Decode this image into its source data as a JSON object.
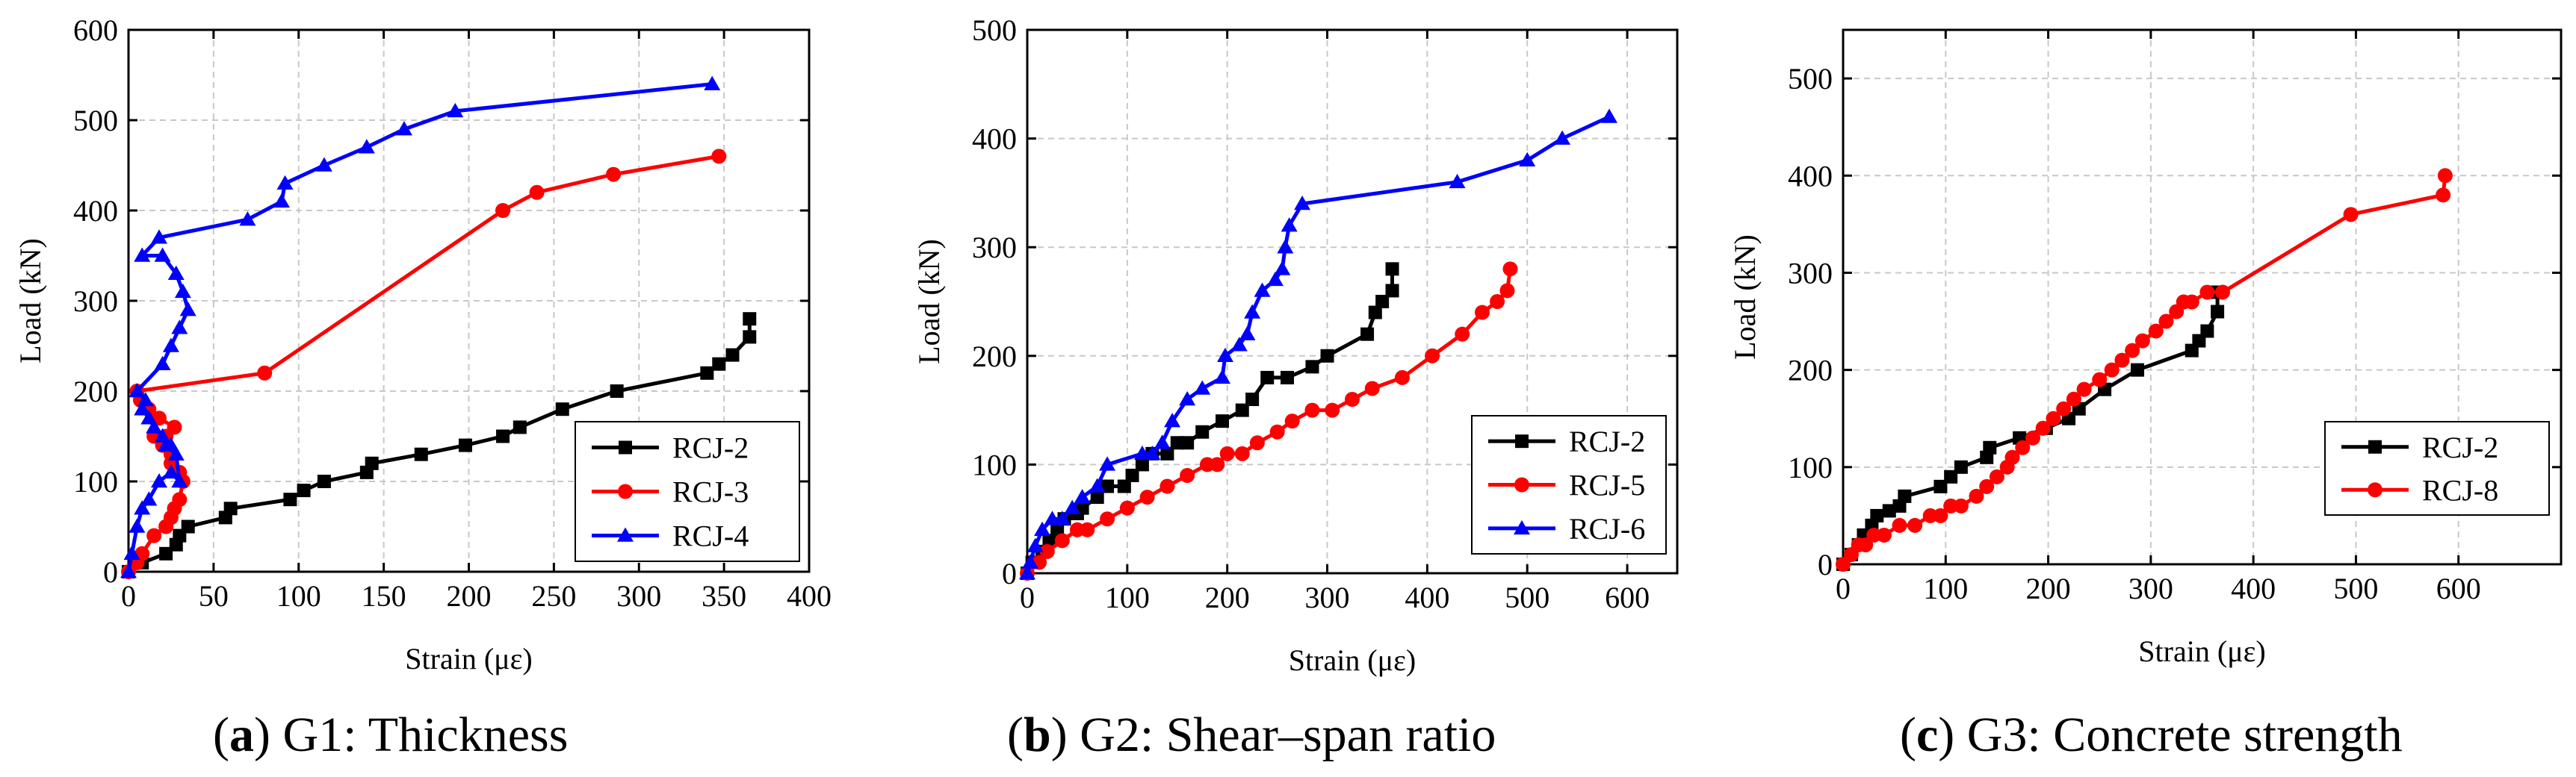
{
  "colors": {
    "RCJ-2": "#000000",
    "RCJ-3": "#ff0000",
    "RCJ-4": "#0000ff",
    "RCJ-5": "#ff0000",
    "RCJ-6": "#0000ff",
    "RCJ-8": "#ff0000"
  },
  "chart_data": [
    {
      "id": "a",
      "type": "line",
      "caption": {
        "letter": "a",
        "text": "G1: Thickness"
      },
      "xlabel": "Strain (με)",
      "ylabel": "Load (kN)",
      "xlim": [
        0,
        400
      ],
      "ylim": [
        0,
        600
      ],
      "xticks": [
        0,
        50,
        100,
        150,
        200,
        250,
        300,
        350,
        400
      ],
      "yticks": [
        0,
        100,
        200,
        300,
        400,
        500,
        600
      ],
      "legend_position": "lower-right",
      "series": [
        {
          "name": "RCJ-2",
          "marker": "square",
          "color": "#000000",
          "x": [
            0,
            8,
            22,
            28,
            30,
            35,
            57,
            60,
            95,
            103,
            115,
            140,
            143,
            172,
            198,
            220,
            230,
            255,
            287,
            340,
            347,
            355,
            365,
            365
          ],
          "y": [
            0,
            10,
            20,
            30,
            40,
            50,
            60,
            70,
            80,
            90,
            100,
            110,
            120,
            130,
            140,
            150,
            160,
            180,
            200,
            220,
            230,
            240,
            260,
            280
          ]
        },
        {
          "name": "RCJ-3",
          "marker": "circle",
          "color": "#ff0000",
          "x": [
            0,
            5,
            8,
            15,
            22,
            25,
            27,
            30,
            32,
            30,
            25,
            25,
            20,
            15,
            22,
            27,
            18,
            12,
            7,
            5,
            80,
            220,
            240,
            285,
            347
          ],
          "y": [
            0,
            10,
            20,
            40,
            50,
            60,
            70,
            80,
            100,
            110,
            120,
            130,
            140,
            150,
            150,
            160,
            170,
            180,
            190,
            200,
            220,
            400,
            420,
            440,
            460
          ]
        },
        {
          "name": "RCJ-4",
          "marker": "triangle",
          "color": "#0000ff",
          "x": [
            0,
            2,
            5,
            8,
            12,
            18,
            25,
            30,
            28,
            22,
            25,
            20,
            15,
            12,
            8,
            10,
            5,
            20,
            25,
            30,
            35,
            32,
            28,
            20,
            8,
            18,
            70,
            90,
            92,
            115,
            140,
            162,
            192,
            343
          ],
          "y": [
            0,
            20,
            50,
            70,
            80,
            100,
            110,
            100,
            130,
            140,
            140,
            150,
            160,
            170,
            180,
            190,
            200,
            230,
            250,
            270,
            290,
            310,
            330,
            350,
            350,
            370,
            390,
            410,
            430,
            450,
            470,
            490,
            510,
            540
          ]
        }
      ]
    },
    {
      "id": "b",
      "type": "line",
      "caption": {
        "letter": "b",
        "text": "G2: Shear–span ratio"
      },
      "xlabel": "Strain (με)",
      "ylabel": "Load (kN)",
      "xlim": [
        0,
        650
      ],
      "ylim": [
        0,
        500
      ],
      "xticks": [
        0,
        100,
        200,
        300,
        400,
        500,
        600
      ],
      "yticks": [
        0,
        100,
        200,
        300,
        400,
        500
      ],
      "legend_position": "lower-right",
      "series": [
        {
          "name": "RCJ-2",
          "marker": "square",
          "color": "#000000",
          "x": [
            0,
            5,
            15,
            22,
            30,
            37,
            50,
            55,
            70,
            80,
            97,
            105,
            115,
            125,
            140,
            150,
            160,
            175,
            195,
            215,
            225,
            240,
            260,
            285,
            300,
            340,
            348,
            355,
            365,
            365
          ],
          "y": [
            0,
            10,
            20,
            30,
            40,
            50,
            55,
            60,
            70,
            80,
            80,
            90,
            100,
            110,
            110,
            120,
            120,
            130,
            140,
            150,
            160,
            180,
            180,
            190,
            200,
            220,
            240,
            250,
            260,
            280
          ]
        },
        {
          "name": "RCJ-5",
          "marker": "circle",
          "color": "#ff0000",
          "x": [
            0,
            12,
            20,
            35,
            50,
            60,
            80,
            100,
            120,
            140,
            160,
            180,
            190,
            200,
            215,
            230,
            250,
            265,
            285,
            305,
            325,
            345,
            375,
            405,
            435,
            455,
            470,
            480,
            483
          ],
          "y": [
            0,
            10,
            20,
            30,
            40,
            40,
            50,
            60,
            70,
            80,
            90,
            100,
            100,
            110,
            110,
            120,
            130,
            140,
            150,
            150,
            160,
            170,
            180,
            200,
            220,
            240,
            250,
            260,
            280
          ]
        },
        {
          "name": "RCJ-6",
          "marker": "triangle",
          "color": "#0000ff",
          "x": [
            0,
            3,
            8,
            15,
            25,
            35,
            45,
            55,
            70,
            80,
            115,
            125,
            135,
            145,
            160,
            175,
            195,
            198,
            212,
            220,
            225,
            235,
            248,
            255,
            258,
            262,
            275,
            430,
            500,
            535,
            582
          ],
          "y": [
            0,
            10,
            25,
            40,
            50,
            50,
            60,
            70,
            80,
            100,
            110,
            110,
            120,
            140,
            160,
            170,
            180,
            200,
            210,
            220,
            240,
            260,
            270,
            280,
            300,
            320,
            340,
            360,
            380,
            400,
            420
          ]
        }
      ]
    },
    {
      "id": "c",
      "type": "line",
      "caption": {
        "letter": "c",
        "text": "G3: Concrete strength"
      },
      "xlabel": "Strain (με)",
      "ylabel": "Load (kN)",
      "xlim": [
        0,
        700
      ],
      "ylim": [
        0,
        550
      ],
      "xticks": [
        0,
        100,
        200,
        300,
        400,
        500,
        600
      ],
      "yticks": [
        0,
        100,
        200,
        300,
        400,
        500
      ],
      "legend_position": "lower-right",
      "series": [
        {
          "name": "RCJ-2",
          "marker": "square",
          "color": "#000000",
          "x": [
            0,
            8,
            15,
            20,
            28,
            33,
            45,
            55,
            60,
            95,
            105,
            115,
            140,
            143,
            172,
            198,
            220,
            230,
            255,
            287,
            340,
            347,
            355,
            365,
            365
          ],
          "y": [
            0,
            10,
            20,
            30,
            40,
            50,
            55,
            60,
            70,
            80,
            90,
            100,
            110,
            120,
            130,
            140,
            150,
            160,
            180,
            200,
            220,
            230,
            240,
            260,
            280
          ]
        },
        {
          "name": "RCJ-8",
          "marker": "circle",
          "color": "#ff0000",
          "x": [
            0,
            8,
            15,
            22,
            30,
            40,
            55,
            70,
            85,
            95,
            105,
            115,
            130,
            140,
            150,
            160,
            165,
            175,
            185,
            195,
            205,
            215,
            225,
            235,
            250,
            262,
            272,
            282,
            292,
            305,
            315,
            325,
            332,
            340,
            355,
            370,
            495,
            585,
            587
          ],
          "y": [
            0,
            10,
            20,
            20,
            30,
            30,
            40,
            40,
            50,
            50,
            60,
            60,
            70,
            80,
            90,
            100,
            110,
            120,
            130,
            140,
            150,
            160,
            170,
            180,
            190,
            200,
            210,
            220,
            230,
            240,
            250,
            260,
            270,
            270,
            280,
            280,
            360,
            380,
            400
          ]
        }
      ]
    }
  ]
}
